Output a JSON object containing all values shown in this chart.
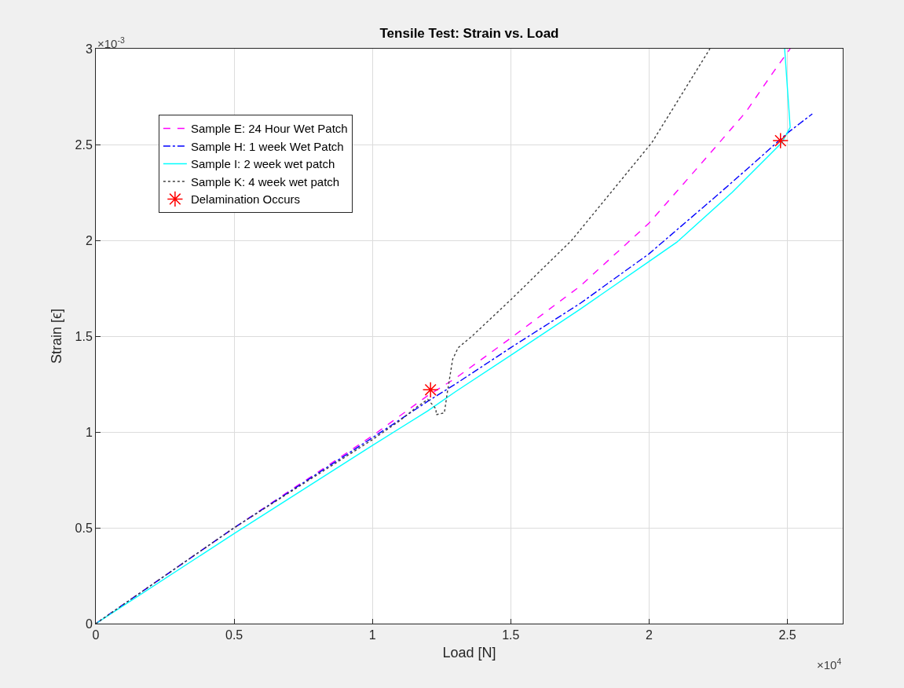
{
  "chart_data": {
    "type": "line",
    "title": "Tensile Test: Strain vs. Load",
    "xlabel": "Load [N]",
    "ylabel": "Strain [ϵ]",
    "annotations": [
      "×10$^{-3}$",
      "×10$^{4}$"
    ],
    "xlim": [
      0,
      2.7
    ],
    "xticks": [
      0,
      0.5,
      1,
      1.5,
      2,
      2.5
    ],
    "ylim": [
      0,
      3
    ],
    "yticks": [
      0,
      0.5,
      1,
      1.5,
      2,
      2.5,
      3
    ],
    "grid": true,
    "legend": "top left",
    "series": [
      {
        "name": "Sample E: 24 Hour Wet Patch",
        "color": "#ff00ff",
        "line_style": "dashed",
        "x": [
          0,
          0.5,
          1,
          1.2,
          1.3,
          1.5,
          1.75,
          2,
          2.2,
          2.35,
          2.45,
          2.51
        ],
        "values": [
          0,
          0.5,
          0.98,
          1.19,
          1.28,
          1.49,
          1.76,
          2.09,
          2.42,
          2.67,
          2.88,
          3
        ]
      },
      {
        "name": "Sample H: 1 week Wet Patch",
        "color": "#0000ff",
        "line_style": "dashdot",
        "x": [
          0,
          0.5,
          1,
          1.2,
          1.3,
          1.5,
          1.75,
          2,
          2.25,
          2.4,
          2.5,
          2.59
        ],
        "values": [
          0,
          0.5,
          0.97,
          1.16,
          1.25,
          1.44,
          1.67,
          1.93,
          2.24,
          2.43,
          2.56,
          2.66
        ]
      },
      {
        "name": "Sample I: 2 week wet patch",
        "color": "#00ffff",
        "line_style": "solid",
        "x": [
          0,
          0.5,
          1,
          1.2,
          1.3,
          1.5,
          1.75,
          2,
          2.1,
          2.3,
          2.48,
          2.51,
          2.49
        ],
        "values": [
          0,
          0.47,
          0.93,
          1.11,
          1.21,
          1.4,
          1.64,
          1.89,
          1.99,
          2.25,
          2.51,
          2.59,
          3
        ]
      },
      {
        "name": "Sample K: 4 week wet patch",
        "color": "#404040",
        "line_style": "dotted",
        "x": [
          0,
          0.5,
          1,
          1.1,
          1.16,
          1.2,
          1.23,
          1.23,
          1.26,
          1.27,
          1.29,
          1.31,
          1.36,
          1.5,
          1.72,
          2.01,
          2.22
        ],
        "values": [
          0,
          0.5,
          0.96,
          1.06,
          1.13,
          1.17,
          1.12,
          1.09,
          1.1,
          1.2,
          1.38,
          1.44,
          1.5,
          1.69,
          2,
          2.51,
          3
        ]
      },
      {
        "name": "Delamination Occurs",
        "type": "scatter",
        "marker": "cross",
        "color": "#ff0000",
        "x": [
          1.21,
          2.475
        ],
        "values": [
          1.22,
          2.52
        ]
      }
    ]
  }
}
